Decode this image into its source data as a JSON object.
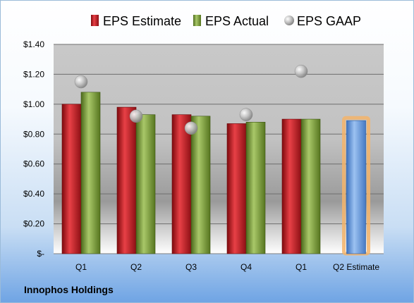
{
  "company": "Innophos Holdings",
  "chart_data": {
    "type": "bar",
    "categories": [
      "Q1",
      "Q2",
      "Q3",
      "Q4",
      "Q1",
      "Q2 Estimate"
    ],
    "series": [
      {
        "name": "EPS Estimate",
        "color": "#c0191f",
        "values": [
          1.0,
          0.98,
          0.93,
          0.87,
          0.9,
          null
        ]
      },
      {
        "name": "EPS Actual",
        "color": "#7a9a3a",
        "values": [
          1.08,
          0.93,
          0.92,
          0.88,
          0.9,
          null
        ]
      },
      {
        "name": "EPS GAAP",
        "type": "scatter",
        "color": "#c8c8c8",
        "values": [
          1.15,
          0.92,
          0.84,
          0.93,
          1.22,
          null
        ]
      },
      {
        "name": "",
        "color": "#6d9fe0",
        "highlight": "#f5b46a",
        "values": [
          null,
          null,
          null,
          null,
          null,
          0.89
        ]
      }
    ],
    "yTicks": [
      "$-",
      "$0.20",
      "$0.40",
      "$0.60",
      "$0.80",
      "$1.00",
      "$1.20",
      "$1.40"
    ],
    "ylim": [
      0,
      1.4
    ],
    "grid": true,
    "legend": "top"
  }
}
